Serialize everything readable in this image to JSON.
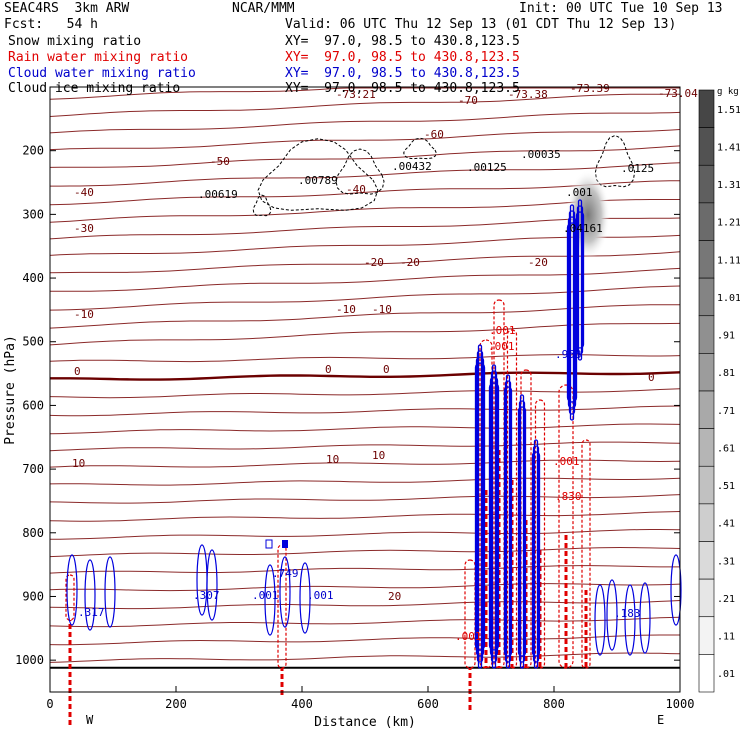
{
  "header": {
    "model": "SEAC4RS  3km ARW",
    "org": "NCAR/MMM",
    "init": "Init: 00 UTC Tue 10 Sep 13",
    "fcst": "Fcst:   54 h",
    "valid": "Valid: 06 UTC Thu 12 Sep 13 (01 CDT Thu 12 Sep 13)"
  },
  "fields": [
    {
      "label": "Snow mixing ratio",
      "xy": "XY=  97.0, 98.5 to 430.8,123.5",
      "color": "#000000"
    },
    {
      "label": "Rain water mixing ratio",
      "xy": "XY=  97.0, 98.5 to 430.8,123.5",
      "color": "#e00000"
    },
    {
      "label": "Cloud water mixing ratio",
      "xy": "XY=  97.0, 98.5 to 430.8,123.5",
      "color": "#0000cc"
    },
    {
      "label": "Cloud ice mixing ratio",
      "xy": "XY=  97.0, 98.5 to 430.8,123.5",
      "color": "#000000"
    }
  ],
  "chart_data": {
    "type": "contour",
    "xlabel": "Distance (km)",
    "ylabel": "Pressure (hPa)",
    "xlim": [
      0,
      1000
    ],
    "ylim": [
      1050,
      100
    ],
    "x_ticks": [
      "0",
      "200",
      "400",
      "600",
      "800",
      "1000"
    ],
    "y_ticks": [
      "200",
      "300",
      "400",
      "500",
      "600",
      "700",
      "800",
      "900",
      "1000"
    ],
    "left_end": "W",
    "right_end": "E",
    "colorbar": {
      "unit": "g kg⁻¹",
      "levels": [
        "1.51",
        "1.41",
        "1.31",
        "1.21",
        "1.11",
        "1.01",
        ".91",
        ".81",
        ".71",
        ".61",
        ".51",
        ".41",
        ".31",
        ".21",
        ".11",
        ".01"
      ]
    },
    "temperature_labels": [
      "-73.04",
      "-73.21",
      "-73.38",
      "-73.39",
      "-70",
      "-60",
      "-50",
      "-40",
      "-40",
      "-30",
      "-20",
      "-20",
      "-20",
      "-10",
      "-10",
      "-10",
      "0",
      "0",
      "0",
      "0",
      "10",
      "10",
      "10",
      "20"
    ],
    "max_labels": [
      {
        "text": ".00619",
        "color": "#000000"
      },
      {
        "text": ".00789",
        "color": "#000000"
      },
      {
        "text": ".00432",
        "color": "#000000"
      },
      {
        "text": ".00125",
        "color": "#000000"
      },
      {
        "text": ".00035",
        "color": "#000000"
      },
      {
        "text": ".0125",
        "color": "#000000"
      },
      {
        "text": ".001",
        "color": "#000000"
      },
      {
        "text": ".04161",
        "color": "#000000"
      },
      {
        "text": ".317",
        "color": "#0000cc"
      },
      {
        "text": ".307",
        "color": "#0000cc"
      },
      {
        "text": ".749",
        "color": "#0000cc"
      },
      {
        "text": ".001",
        "color": "#0000cc"
      },
      {
        "text": ".001",
        "color": "#0000cc"
      },
      {
        "text": ".183",
        "color": "#0000cc"
      },
      {
        "text": ".953",
        "color": "#0000cc"
      },
      {
        "text": ".001",
        "color": "#e00000"
      },
      {
        "text": ".001",
        "color": "#e00000"
      },
      {
        "text": ".830",
        "color": "#e00000"
      },
      {
        "text": ".001",
        "color": "#e00000"
      },
      {
        "text": ".001",
        "color": "#e00000"
      }
    ]
  }
}
